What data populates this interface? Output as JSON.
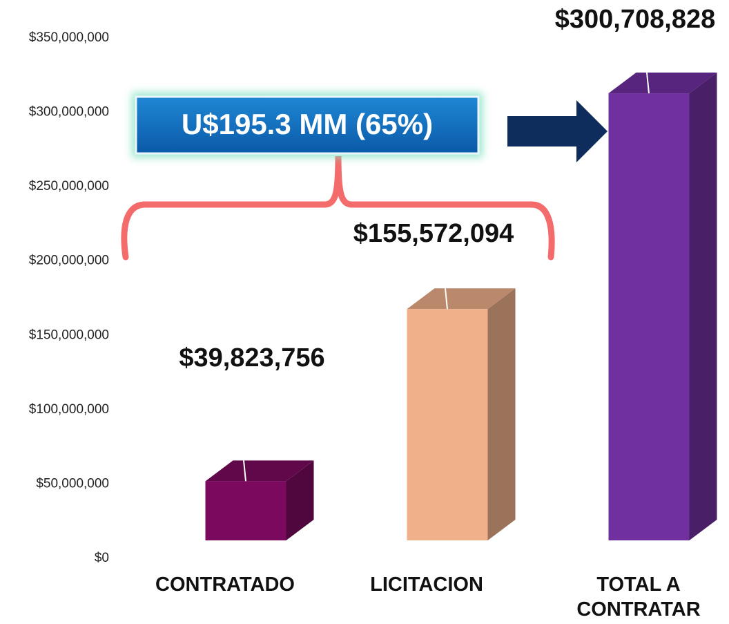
{
  "chart_data": {
    "type": "bar3d",
    "categories": [
      "CONTRATADO",
      "LICITACION",
      "TOTAL A CONTRATAR"
    ],
    "values": [
      39823756,
      155572094,
      300708828
    ],
    "value_labels": [
      "$39,823,756",
      "$155,572,094",
      "$300,708,828"
    ],
    "colors": [
      "#7b0a5e",
      "#efb08a",
      "#7030a0"
    ],
    "ylim": [
      0,
      350000000
    ],
    "yticks": [
      {
        "value": 0,
        "label": "$0"
      },
      {
        "value": 50000000,
        "label": "$50,000,000"
      },
      {
        "value": 100000000,
        "label": "$100,000,000"
      },
      {
        "value": 150000000,
        "label": "$150,000,000"
      },
      {
        "value": 200000000,
        "label": "$200,000,000"
      },
      {
        "value": 250000000,
        "label": "$250,000,000"
      },
      {
        "value": 300000000,
        "label": "$300,000,000"
      },
      {
        "value": 350000000,
        "label": "$350,000,000"
      }
    ],
    "annotation": "U$195.3 MM (65%)",
    "grid": false
  }
}
